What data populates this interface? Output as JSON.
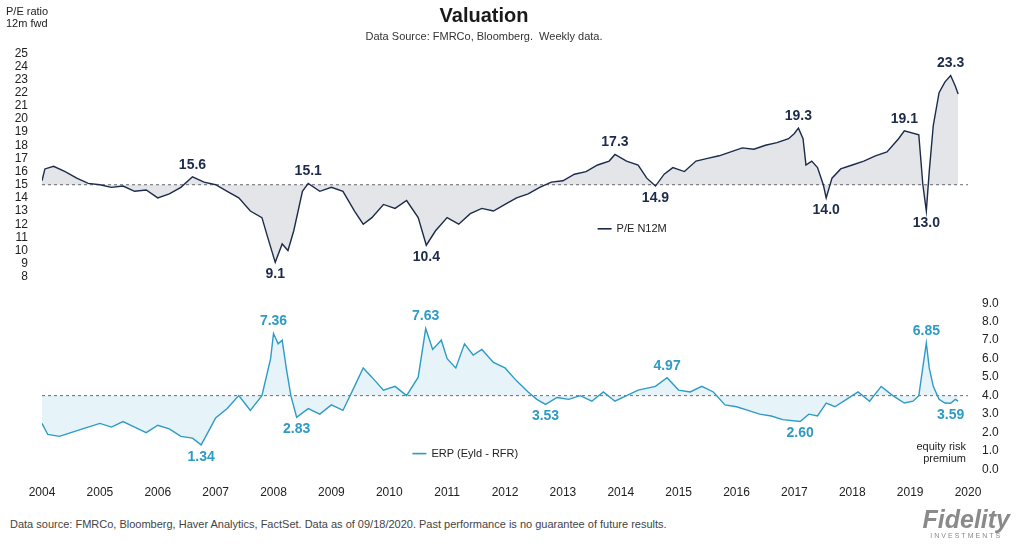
{
  "chart_data": [
    {
      "type": "line",
      "title": "Valuation",
      "subtitle": "Data Source: FMRCo, Bloomberg.  Weekly data.",
      "y_label": "P/E ratio 12m fwd",
      "xlim": [
        2004,
        2020
      ],
      "ylim": [
        8,
        25
      ],
      "yticks": [
        8,
        9,
        10,
        11,
        12,
        13,
        14,
        15,
        16,
        17,
        18,
        19,
        20,
        21,
        22,
        23,
        24,
        25
      ],
      "grid": false,
      "tick_labels": "y",
      "legend": "lower center",
      "baseline": 15,
      "series": [
        {
          "name": "P/E N12M",
          "color": "#1c2b4a",
          "x": [
            2004,
            2004.05,
            2004.2,
            2004.4,
            2004.6,
            2004.8,
            2005.0,
            2005.2,
            2005.4,
            2005.6,
            2005.8,
            2006.0,
            2006.2,
            2006.4,
            2006.6,
            2006.8,
            2007.0,
            2007.2,
            2007.4,
            2007.6,
            2007.8,
            2007.9,
            2008.03,
            2008.15,
            2008.25,
            2008.35,
            2008.5,
            2008.6,
            2008.8,
            2009.0,
            2009.2,
            2009.4,
            2009.55,
            2009.7,
            2009.9,
            2010.1,
            2010.3,
            2010.5,
            2010.64,
            2010.8,
            2011.0,
            2011.2,
            2011.4,
            2011.6,
            2011.8,
            2012.0,
            2012.2,
            2012.4,
            2012.6,
            2012.8,
            2013.0,
            2013.2,
            2013.4,
            2013.6,
            2013.8,
            2013.9,
            2014.1,
            2014.3,
            2014.45,
            2014.6,
            2014.75,
            2014.9,
            2015.1,
            2015.3,
            2015.5,
            2015.7,
            2015.9,
            2016.1,
            2016.3,
            2016.5,
            2016.7,
            2016.9,
            2017.0,
            2017.07,
            2017.15,
            2017.2,
            2017.3,
            2017.4,
            2017.5,
            2017.55,
            2017.65,
            2017.8,
            2018.0,
            2018.2,
            2018.4,
            2018.6,
            2018.8,
            2018.9,
            2019.15,
            2019.22,
            2019.28,
            2019.33,
            2019.4,
            2019.5,
            2019.6,
            2019.7,
            2019.78,
            2019.83
          ],
          "values": [
            15.3,
            16.2,
            16.4,
            16.0,
            15.5,
            15.1,
            15.0,
            14.8,
            14.9,
            14.5,
            14.6,
            14.0,
            14.3,
            14.8,
            15.6,
            15.2,
            15.0,
            14.5,
            14.0,
            13.0,
            12.5,
            11.0,
            9.1,
            10.5,
            10.0,
            11.5,
            14.5,
            15.1,
            14.5,
            14.8,
            14.5,
            13.0,
            12.0,
            12.5,
            13.5,
            13.2,
            13.8,
            12.5,
            10.4,
            11.5,
            12.5,
            12.0,
            12.8,
            13.2,
            13.0,
            13.5,
            14.0,
            14.3,
            14.8,
            15.2,
            15.3,
            15.8,
            16.0,
            16.5,
            16.8,
            17.3,
            16.8,
            16.5,
            15.5,
            14.9,
            15.8,
            16.3,
            16.0,
            16.8,
            17.0,
            17.2,
            17.5,
            17.8,
            17.7,
            18.0,
            18.2,
            18.5,
            18.9,
            19.3,
            18.5,
            16.5,
            16.8,
            16.3,
            15.0,
            14.0,
            15.5,
            16.2,
            16.5,
            16.8,
            17.2,
            17.5,
            18.5,
            19.1,
            18.8,
            15.0,
            13.0,
            16.0,
            19.5,
            22.0,
            22.8,
            23.3,
            22.5,
            21.9
          ]
        }
      ],
      "annotations": [
        {
          "x": 2006.6,
          "value": 15.6,
          "label": "15.6"
        },
        {
          "x": 2008.03,
          "value": 9.1,
          "label": "9.1"
        },
        {
          "x": 2008.6,
          "value": 15.1,
          "label": "15.1"
        },
        {
          "x": 2010.64,
          "value": 10.4,
          "label": "10.4"
        },
        {
          "x": 2013.9,
          "value": 17.3,
          "label": "17.3"
        },
        {
          "x": 2014.6,
          "value": 14.9,
          "label": "14.9"
        },
        {
          "x": 2017.07,
          "value": 19.3,
          "label": "19.3"
        },
        {
          "x": 2017.55,
          "value": 14.0,
          "label": "14.0"
        },
        {
          "x": 2018.9,
          "value": 19.1,
          "label": "19.1"
        },
        {
          "x": 2019.28,
          "value": 13.0,
          "label": "13.0"
        },
        {
          "x": 2019.7,
          "value": 23.3,
          "label": "23.3"
        }
      ]
    },
    {
      "type": "line",
      "y_label": "equity risk premium",
      "xlim": [
        2004,
        2020
      ],
      "xticks": [
        2004,
        2005,
        2006,
        2007,
        2008,
        2009,
        2010,
        2011,
        2012,
        2013,
        2014,
        2015,
        2016,
        2017,
        2018,
        2019,
        2020
      ],
      "ylim": [
        0,
        9
      ],
      "yticks": [
        {
          "value": 0,
          "label": "0.0"
        },
        {
          "value": 1,
          "label": "1.0"
        },
        {
          "value": 2,
          "label": "2.0"
        },
        {
          "value": 3,
          "label": "3.0"
        },
        {
          "value": 4,
          "label": "4.0"
        },
        {
          "value": 5,
          "label": "5.0"
        },
        {
          "value": 6,
          "label": "6.0"
        },
        {
          "value": 7,
          "label": "7.0"
        },
        {
          "value": 8,
          "label": "8.0"
        },
        {
          "value": 9,
          "label": "9.0"
        }
      ],
      "grid": false,
      "legend": "lower center",
      "baseline": 4,
      "series": [
        {
          "name": "ERP (Eyld - RFR)",
          "color": "#2e9bc6",
          "x": [
            2004,
            2004.1,
            2004.3,
            2004.5,
            2004.7,
            2005.0,
            2005.2,
            2005.4,
            2005.6,
            2005.8,
            2006.0,
            2006.2,
            2006.4,
            2006.6,
            2006.75,
            2006.9,
            2007.0,
            2007.2,
            2007.4,
            2007.5,
            2007.6,
            2007.8,
            2007.95,
            2008.0,
            2008.08,
            2008.15,
            2008.22,
            2008.3,
            2008.4,
            2008.6,
            2008.8,
            2009.0,
            2009.2,
            2009.4,
            2009.55,
            2009.7,
            2009.9,
            2010.1,
            2010.3,
            2010.5,
            2010.63,
            2010.75,
            2010.9,
            2011.0,
            2011.15,
            2011.3,
            2011.45,
            2011.6,
            2011.8,
            2012.0,
            2012.2,
            2012.4,
            2012.55,
            2012.7,
            2012.9,
            2013.1,
            2013.3,
            2013.5,
            2013.7,
            2013.9,
            2014.1,
            2014.3,
            2014.6,
            2014.8,
            2015.0,
            2015.2,
            2015.4,
            2015.6,
            2015.8,
            2016.0,
            2016.2,
            2016.4,
            2016.6,
            2016.8,
            2017.1,
            2017.25,
            2017.4,
            2017.55,
            2017.7,
            2017.9,
            2018.1,
            2018.3,
            2018.5,
            2018.7,
            2018.9,
            2019.05,
            2019.15,
            2019.28,
            2019.33,
            2019.4,
            2019.5,
            2019.6,
            2019.7,
            2019.78,
            2019.83
          ],
          "values": [
            2.5,
            1.9,
            1.8,
            2.0,
            2.2,
            2.5,
            2.3,
            2.6,
            2.3,
            2.0,
            2.4,
            2.2,
            1.8,
            1.7,
            1.34,
            2.2,
            2.8,
            3.3,
            4.0,
            3.6,
            3.2,
            4.0,
            6.0,
            7.36,
            6.8,
            7.0,
            5.5,
            4.0,
            2.83,
            3.3,
            3.0,
            3.5,
            3.2,
            4.5,
            5.5,
            5.0,
            4.3,
            4.5,
            4.0,
            5.0,
            7.63,
            6.5,
            7.0,
            6.0,
            5.5,
            6.8,
            6.2,
            6.5,
            5.8,
            5.5,
            4.8,
            4.2,
            3.8,
            3.53,
            3.9,
            3.8,
            4.0,
            3.7,
            4.2,
            3.7,
            4.0,
            4.3,
            4.5,
            4.97,
            4.3,
            4.2,
            4.5,
            4.2,
            3.5,
            3.4,
            3.2,
            3.0,
            2.9,
            2.7,
            2.6,
            3.0,
            2.9,
            3.6,
            3.4,
            3.8,
            4.2,
            3.7,
            4.5,
            4.0,
            3.6,
            3.7,
            4.0,
            6.85,
            5.5,
            4.5,
            3.8,
            3.6,
            3.59,
            3.8,
            3.7
          ]
        }
      ],
      "annotations": [
        {
          "x": 2006.75,
          "value": 1.34,
          "label": "1.34"
        },
        {
          "x": 2008.0,
          "value": 7.36,
          "label": "7.36"
        },
        {
          "x": 2008.4,
          "value": 2.83,
          "label": "2.83"
        },
        {
          "x": 2010.63,
          "value": 7.63,
          "label": "7.63"
        },
        {
          "x": 2012.7,
          "value": 3.53,
          "label": "3.53"
        },
        {
          "x": 2014.8,
          "value": 4.97,
          "label": "4.97"
        },
        {
          "x": 2017.1,
          "value": 2.6,
          "label": "2.60"
        },
        {
          "x": 2019.28,
          "value": 6.85,
          "label": "6.85"
        },
        {
          "x": 2019.7,
          "value": 3.59,
          "label": "3.59"
        }
      ]
    }
  ],
  "footer": "Data source: FMRCo, Bloomberg, Haver Analytics, FactSet. Data as of 09/18/2020. Past performance is no guarantee of future results.",
  "logo": "Fidelity",
  "logo_subtitle": "INVESTMENTS"
}
